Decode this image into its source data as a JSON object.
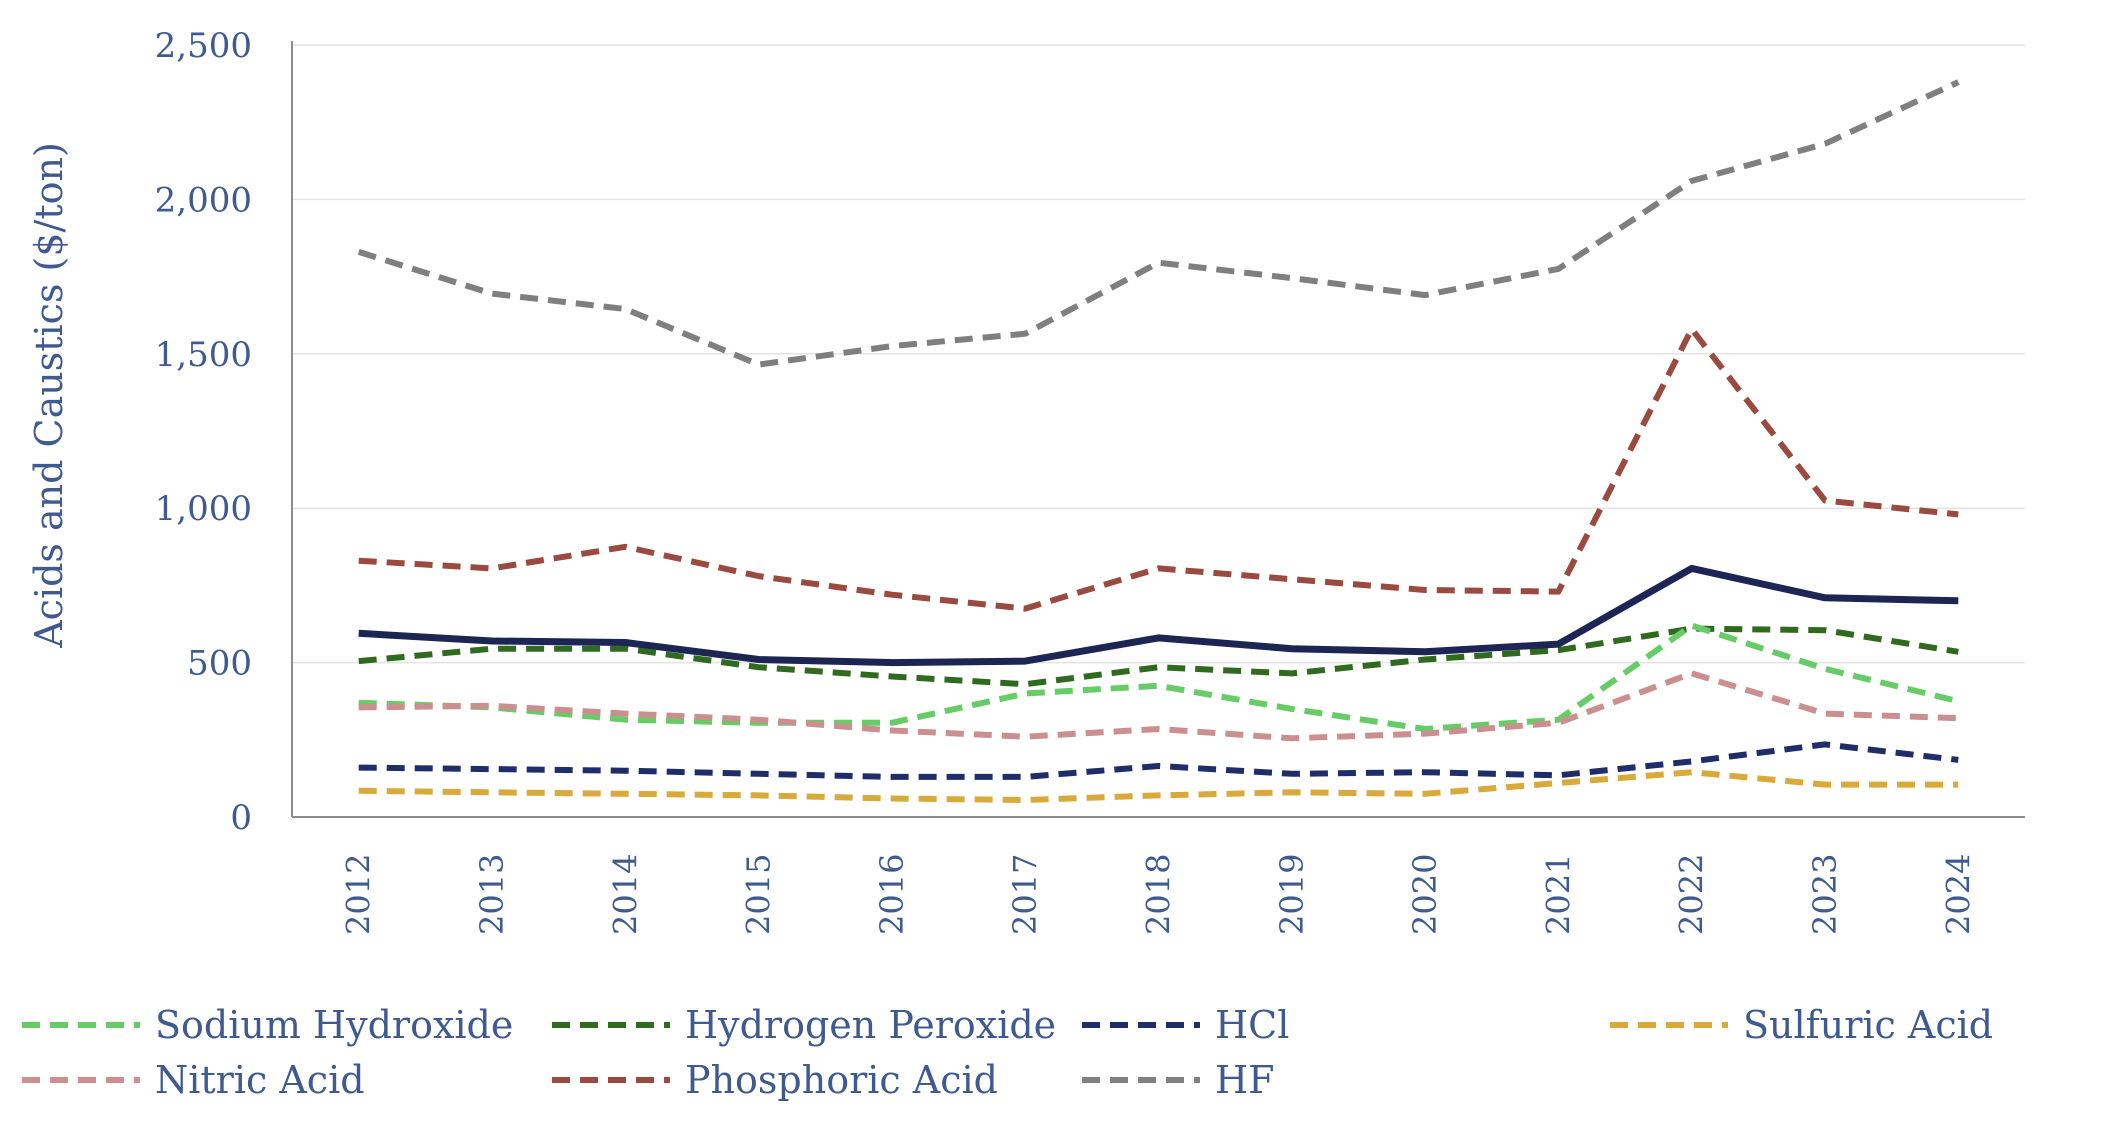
{
  "chart_data": {
    "type": "line",
    "title": "",
    "xlabel": "",
    "ylabel": "Acids and Caustics ($/ton)",
    "ylim": [
      0,
      2500
    ],
    "yticks": [
      0,
      500,
      1000,
      1500,
      2000,
      2500
    ],
    "ytick_labels": [
      "0",
      "500",
      "1,000",
      "1,500",
      "2,000",
      "2,500"
    ],
    "grid": "horizontal",
    "legend_position": "bottom",
    "x": [
      "2012",
      "2013",
      "2014",
      "2015",
      "2016",
      "2017",
      "2018",
      "2019",
      "2020",
      "2021",
      "2022",
      "2023",
      "2024"
    ],
    "series": [
      {
        "name": "Sodium Hydroxide",
        "color": "#66cc66",
        "dash": "dashed",
        "values": [
          370,
          355,
          315,
          305,
          305,
          400,
          425,
          350,
          285,
          315,
          620,
          480,
          375
        ]
      },
      {
        "name": "Hydrogen Peroxide",
        "color": "#2f6a1e",
        "dash": "dashed",
        "values": [
          505,
          545,
          545,
          485,
          455,
          430,
          485,
          465,
          510,
          540,
          610,
          605,
          535
        ]
      },
      {
        "name": "HCl",
        "color": "#1f2d6b",
        "dash": "dashed",
        "values": [
          160,
          155,
          150,
          140,
          130,
          130,
          165,
          140,
          145,
          135,
          180,
          235,
          185
        ]
      },
      {
        "name": "Sulfuric Acid",
        "color": "#d9a93a",
        "dash": "dashed",
        "values": [
          85,
          80,
          75,
          70,
          60,
          55,
          70,
          80,
          75,
          110,
          145,
          105,
          105
        ]
      },
      {
        "name": "Nitric Acid",
        "color": "#cc8f8f",
        "dash": "dashed",
        "values": [
          355,
          360,
          335,
          315,
          280,
          260,
          285,
          255,
          270,
          305,
          465,
          335,
          320
        ]
      },
      {
        "name": "Phosphoric Acid",
        "color": "#9a4a3e",
        "dash": "dashed",
        "values": [
          830,
          805,
          875,
          780,
          720,
          675,
          805,
          770,
          735,
          730,
          1580,
          1025,
          980
        ]
      },
      {
        "name": "HF",
        "color": "#7f7f7f",
        "dash": "dashed",
        "values": [
          1830,
          1695,
          1645,
          1465,
          1525,
          1565,
          1795,
          1745,
          1690,
          1775,
          2060,
          2180,
          2380
        ]
      },
      {
        "name": "",
        "color": "#1c2554",
        "dash": "solid",
        "values": [
          595,
          570,
          565,
          510,
          500,
          505,
          580,
          545,
          535,
          560,
          805,
          710,
          700
        ]
      }
    ]
  }
}
